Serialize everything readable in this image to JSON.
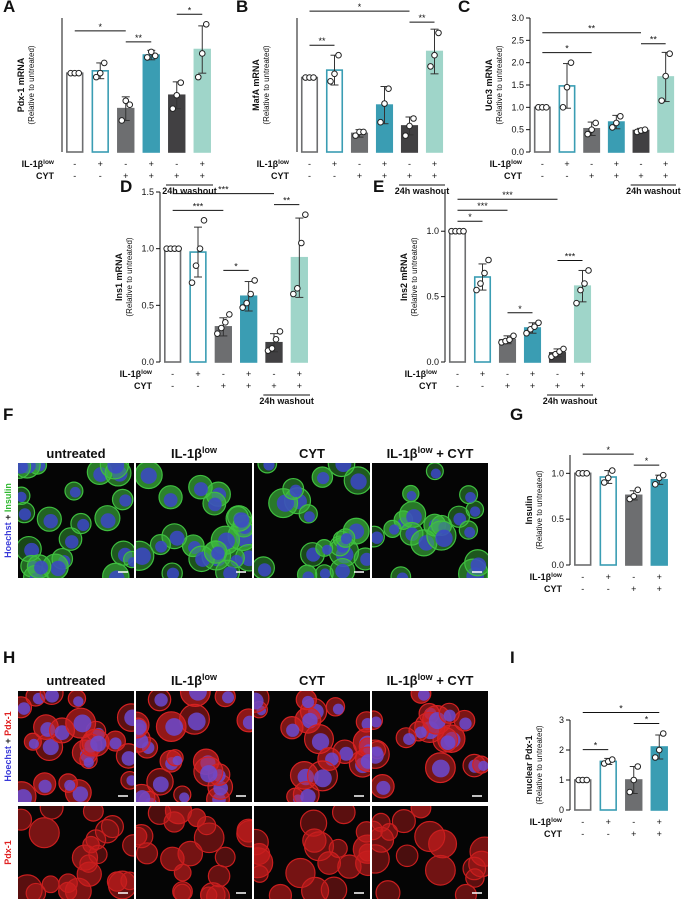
{
  "chart_data": [
    {
      "type": "bar",
      "panel": "A",
      "ylabel": "Pdx-1 mRNA",
      "ylabel_sub": "(Relative to untreated)",
      "ylim": [
        0,
        1.7
      ],
      "values": [
        1.0,
        1.03,
        0.55,
        1.23,
        0.72,
        1.3
      ],
      "errors": [
        0,
        0.1,
        0.15,
        0.06,
        0.17,
        0.3
      ],
      "points": [
        [
          1,
          1,
          1
        ],
        [
          0.95,
          1.0,
          1.13
        ],
        [
          0.4,
          0.65,
          0.6
        ],
        [
          1.2,
          1.27,
          1.22
        ],
        [
          0.55,
          0.72,
          0.88
        ],
        [
          0.95,
          1.25,
          1.62
        ]
      ],
      "colors": [
        "#ffffff",
        "#ffffff",
        "#6d6e70",
        "#3a9db3",
        "#414042",
        "#9fd5c9"
      ],
      "edge_colors": [
        "#6d6e70",
        "#3a9db3",
        "#6d6e70",
        "#3a9db3",
        "#414042",
        "#9fd5c9"
      ],
      "conditions": [
        {
          "name": "IL-1β",
          "name_sup": "low",
          "signs": [
            "-",
            "+",
            "-",
            "+",
            "-",
            "+"
          ]
        },
        {
          "name": "CYT",
          "signs": [
            "-",
            "-",
            "+",
            "+",
            "+",
            "+"
          ]
        }
      ],
      "washout": {
        "label": "24h washout",
        "bars": [
          4,
          5
        ]
      },
      "brackets": [
        {
          "pair": [
            0,
            2
          ],
          "label": "*"
        },
        {
          "pair": [
            2,
            3
          ],
          "label": "**"
        },
        {
          "pair": [
            4,
            5
          ],
          "label": "*"
        }
      ]
    },
    {
      "type": "bar",
      "panel": "B",
      "ylabel": "MafA mRNA",
      "ylabel_sub": "(Relative to untreated)",
      "ylim": [
        0,
        1.8
      ],
      "values": [
        1.0,
        1.1,
        0.25,
        0.63,
        0.35,
        1.35
      ],
      "errors": [
        0,
        0.2,
        0.05,
        0.25,
        0.12,
        0.3
      ],
      "points": [
        [
          1,
          1,
          1
        ],
        [
          0.95,
          1.05,
          1.3
        ],
        [
          0.22,
          0.27,
          0.27
        ],
        [
          0.4,
          0.65,
          0.85
        ],
        [
          0.22,
          0.35,
          0.45
        ],
        [
          1.15,
          1.3,
          1.6
        ]
      ],
      "colors": [
        "#ffffff",
        "#ffffff",
        "#6d6e70",
        "#3a9db3",
        "#414042",
        "#9fd5c9"
      ],
      "edge_colors": [
        "#6d6e70",
        "#3a9db3",
        "#6d6e70",
        "#3a9db3",
        "#414042",
        "#9fd5c9"
      ],
      "conditions": [
        {
          "name": "IL-1β",
          "name_sup": "low",
          "signs": [
            "-",
            "+",
            "-",
            "+",
            "-",
            "+"
          ]
        },
        {
          "name": "CYT",
          "signs": [
            "-",
            "-",
            "+",
            "+",
            "+",
            "+"
          ]
        }
      ],
      "washout": {
        "label": "24h washout",
        "bars": [
          4,
          5
        ]
      },
      "brackets": [
        {
          "pair": [
            0,
            1
          ],
          "label": "**"
        },
        {
          "pair": [
            0,
            4
          ],
          "label": "*"
        },
        {
          "pair": [
            4,
            5
          ],
          "label": "**"
        }
      ]
    },
    {
      "type": "bar",
      "panel": "C",
      "ylabel": "Ucn3 mRNA",
      "ylabel_sub": "(Relative to untreated)",
      "ylim": [
        0,
        3
      ],
      "yticks": [
        {
          "value": 0,
          "label": "0.0"
        },
        0.5,
        {
          "value": 1,
          "label": "1.0"
        },
        1.5,
        {
          "value": 2,
          "label": "2.0"
        },
        2.5,
        {
          "value": 3,
          "label": "3.0"
        }
      ],
      "values": [
        1.0,
        1.48,
        0.52,
        0.67,
        0.48,
        1.68
      ],
      "errors": [
        0,
        0.5,
        0.15,
        0.15,
        0.05,
        0.55
      ],
      "points": [
        [
          1,
          1,
          1
        ],
        [
          1.0,
          1.45,
          2.0
        ],
        [
          0.4,
          0.5,
          0.65
        ],
        [
          0.55,
          0.65,
          0.8
        ],
        [
          0.45,
          0.48,
          0.5
        ],
        [
          1.15,
          1.7,
          2.2
        ]
      ],
      "colors": [
        "#ffffff",
        "#ffffff",
        "#6d6e70",
        "#3a9db3",
        "#414042",
        "#9fd5c9"
      ],
      "edge_colors": [
        "#6d6e70",
        "#3a9db3",
        "#6d6e70",
        "#3a9db3",
        "#414042",
        "#9fd5c9"
      ],
      "conditions": [
        {
          "name": "IL-1β",
          "name_sup": "low",
          "signs": [
            "-",
            "+",
            "-",
            "+",
            "-",
            "+"
          ]
        },
        {
          "name": "CYT",
          "signs": [
            "-",
            "-",
            "+",
            "+",
            "+",
            "+"
          ]
        }
      ],
      "washout": {
        "label": "24h washout",
        "bars": [
          4,
          5
        ]
      },
      "brackets": [
        {
          "pair": [
            0,
            2
          ],
          "label": "*"
        },
        {
          "pair": [
            0,
            4
          ],
          "label": "**"
        },
        {
          "pair": [
            4,
            5
          ],
          "label": "**"
        }
      ]
    },
    {
      "type": "bar",
      "panel": "D",
      "ylabel": "Ins1 mRNA",
      "ylabel_sub": "(Relative to untreated)",
      "ylim": [
        0,
        1.5
      ],
      "yticks": [
        {
          "value": 0,
          "label": "0.0"
        },
        0.5,
        {
          "value": 1,
          "label": "1.0"
        },
        1.5
      ],
      "values": [
        1.0,
        0.97,
        0.31,
        0.58,
        0.17,
        0.92
      ],
      "errors": [
        0,
        0.22,
        0.08,
        0.13,
        0.08,
        0.35
      ],
      "points": [
        [
          1,
          1,
          1,
          1
        ],
        [
          0.7,
          0.85,
          1.0,
          1.25
        ],
        [
          0.25,
          0.3,
          0.35,
          0.42
        ],
        [
          0.48,
          0.52,
          0.6,
          0.72
        ],
        [
          0.1,
          0.12,
          0.2,
          0.27
        ],
        [
          0.6,
          0.65,
          1.05,
          1.3
        ]
      ],
      "colors": [
        "#ffffff",
        "#ffffff",
        "#6d6e70",
        "#3a9db3",
        "#414042",
        "#9fd5c9"
      ],
      "edge_colors": [
        "#6d6e70",
        "#3a9db3",
        "#6d6e70",
        "#3a9db3",
        "#414042",
        "#9fd5c9"
      ],
      "conditions": [
        {
          "name": "IL-1β",
          "name_sup": "low",
          "signs": [
            "-",
            "+",
            "-",
            "+",
            "-",
            "+"
          ]
        },
        {
          "name": "CYT",
          "signs": [
            "-",
            "-",
            "+",
            "+",
            "+",
            "+"
          ]
        }
      ],
      "washout": {
        "label": "24h washout",
        "bars": [
          4,
          5
        ]
      },
      "brackets": [
        {
          "pair": [
            0,
            2
          ],
          "label": "***"
        },
        {
          "pair": [
            0,
            4
          ],
          "label": "***"
        },
        {
          "pair": [
            2,
            3
          ],
          "label": "*"
        },
        {
          "pair": [
            4,
            5
          ],
          "label": "**"
        }
      ]
    },
    {
      "type": "bar",
      "panel": "E",
      "ylabel": "Ins2 mRNA",
      "ylabel_sub": "(Relative to untreated)",
      "ylim": [
        0,
        1.3
      ],
      "yticks": [
        {
          "value": 0,
          "label": "0.0"
        },
        0.5,
        {
          "value": 1,
          "label": "1.0"
        }
      ],
      "values": [
        1.0,
        0.65,
        0.17,
        0.26,
        0.07,
        0.58
      ],
      "errors": [
        0,
        0.1,
        0.03,
        0.04,
        0.03,
        0.12
      ],
      "points": [
        [
          1,
          1,
          1,
          1
        ],
        [
          0.55,
          0.6,
          0.68,
          0.78
        ],
        [
          0.15,
          0.16,
          0.17,
          0.2
        ],
        [
          0.22,
          0.25,
          0.27,
          0.3
        ],
        [
          0.04,
          0.06,
          0.08,
          0.1
        ],
        [
          0.45,
          0.55,
          0.6,
          0.7
        ]
      ],
      "colors": [
        "#ffffff",
        "#ffffff",
        "#6d6e70",
        "#3a9db3",
        "#414042",
        "#9fd5c9"
      ],
      "edge_colors": [
        "#6d6e70",
        "#3a9db3",
        "#6d6e70",
        "#3a9db3",
        "#414042",
        "#9fd5c9"
      ],
      "conditions": [
        {
          "name": "IL-1β",
          "name_sup": "low",
          "signs": [
            "-",
            "+",
            "-",
            "+",
            "-",
            "+"
          ]
        },
        {
          "name": "CYT",
          "signs": [
            "-",
            "-",
            "+",
            "+",
            "+",
            "+"
          ]
        }
      ],
      "washout": {
        "label": "24h washout",
        "bars": [
          4,
          5
        ]
      },
      "brackets": [
        {
          "pair": [
            0,
            1
          ],
          "label": "*"
        },
        {
          "pair": [
            0,
            2
          ],
          "label": "***"
        },
        {
          "pair": [
            0,
            4
          ],
          "label": "***"
        },
        {
          "pair": [
            2,
            3
          ],
          "label": "*"
        },
        {
          "pair": [
            4,
            5
          ],
          "label": "***"
        }
      ]
    },
    {
      "type": "bar",
      "panel": "G",
      "ylabel": "Insulin",
      "ylabel_sub": "(Relative to untreated)",
      "ylim": [
        0,
        1.2
      ],
      "yticks": [
        {
          "value": 0,
          "label": "0.0"
        },
        0.5,
        {
          "value": 1,
          "label": "1.0"
        }
      ],
      "values": [
        1.0,
        0.96,
        0.76,
        0.93
      ],
      "errors": [
        0,
        0.07,
        0.05,
        0.05
      ],
      "points": [
        [
          1,
          1,
          1
        ],
        [
          0.9,
          0.95,
          1.03
        ],
        [
          0.72,
          0.75,
          0.82
        ],
        [
          0.88,
          0.95,
          0.98
        ]
      ],
      "colors": [
        "#ffffff",
        "#ffffff",
        "#6d6e70",
        "#3a9db3"
      ],
      "edge_colors": [
        "#6d6e70",
        "#3a9db3",
        "#6d6e70",
        "#3a9db3"
      ],
      "conditions": [
        {
          "name": "IL-1β",
          "name_sup": "low",
          "signs": [
            "-",
            "+",
            "-",
            "+"
          ]
        },
        {
          "name": "CYT",
          "signs": [
            "-",
            "-",
            "+",
            "+"
          ]
        }
      ],
      "brackets": [
        {
          "pair": [
            0,
            2
          ],
          "label": "*"
        },
        {
          "pair": [
            2,
            3
          ],
          "label": "*"
        }
      ]
    },
    {
      "type": "bar",
      "panel": "I",
      "ylabel": "nuclear Pdx-1",
      "ylabel_sub": "(Relative to untreated)",
      "ylim": [
        0,
        3
      ],
      "yticks": [
        0,
        1,
        2,
        3
      ],
      "values": [
        1.0,
        1.62,
        1.0,
        2.1
      ],
      "errors": [
        0,
        0.1,
        0.45,
        0.4
      ],
      "points": [
        [
          1,
          1,
          1
        ],
        [
          1.55,
          1.62,
          1.68
        ],
        [
          0.6,
          1.0,
          1.45
        ],
        [
          1.75,
          2.0,
          2.55
        ]
      ],
      "colors": [
        "#ffffff",
        "#ffffff",
        "#6d6e70",
        "#3a9db3"
      ],
      "edge_colors": [
        "#6d6e70",
        "#3a9db3",
        "#6d6e70",
        "#3a9db3"
      ],
      "conditions": [
        {
          "name": "IL-1β",
          "name_sup": "low",
          "signs": [
            "-",
            "+",
            "-",
            "+"
          ]
        },
        {
          "name": "CYT",
          "signs": [
            "-",
            "-",
            "+",
            "+"
          ]
        }
      ],
      "brackets": [
        {
          "pair": [
            0,
            1
          ],
          "label": "*"
        },
        {
          "pair": [
            0,
            3
          ],
          "label": "*"
        },
        {
          "pair": [
            2,
            3
          ],
          "label": "*"
        }
      ]
    }
  ],
  "image_panels": [
    {
      "panel": "F",
      "titles": [
        {
          "text": "untreated"
        },
        {
          "text": "IL-1β",
          "sup": "low"
        },
        {
          "text": "CYT"
        },
        {
          "text": "IL-1β",
          "sup": "low",
          "suffix": " + CYT"
        }
      ],
      "rows": [
        {
          "label": [
            {
              "text": "Hoechst",
              "color": "#3a3ad8"
            },
            {
              "text": " + ",
              "color": "#222222"
            },
            {
              "text": "Insulin",
              "color": "#2fb82f"
            }
          ],
          "cell_color": "#3fbf3f",
          "nucleus_color": "#3c46c8"
        }
      ]
    },
    {
      "panel": "H",
      "titles": [
        {
          "text": "untreated"
        },
        {
          "text": "IL-1β",
          "sup": "low"
        },
        {
          "text": "CYT"
        },
        {
          "text": "IL-1β",
          "sup": "low",
          "suffix": " + CYT"
        }
      ],
      "rows": [
        {
          "label": [
            {
              "text": "Hoechst",
              "color": "#3a3ad8"
            },
            {
              "text": " + ",
              "color": "#222222"
            },
            {
              "text": "Pdx-1",
              "color": "#e02020"
            }
          ],
          "cell_color": "#d42222",
          "nucleus_color": "#6a4ad0"
        },
        {
          "label": [
            {
              "text": "Pdx-1",
              "color": "#e02020"
            }
          ],
          "cell_color": "#c81e1e"
        }
      ]
    }
  ]
}
